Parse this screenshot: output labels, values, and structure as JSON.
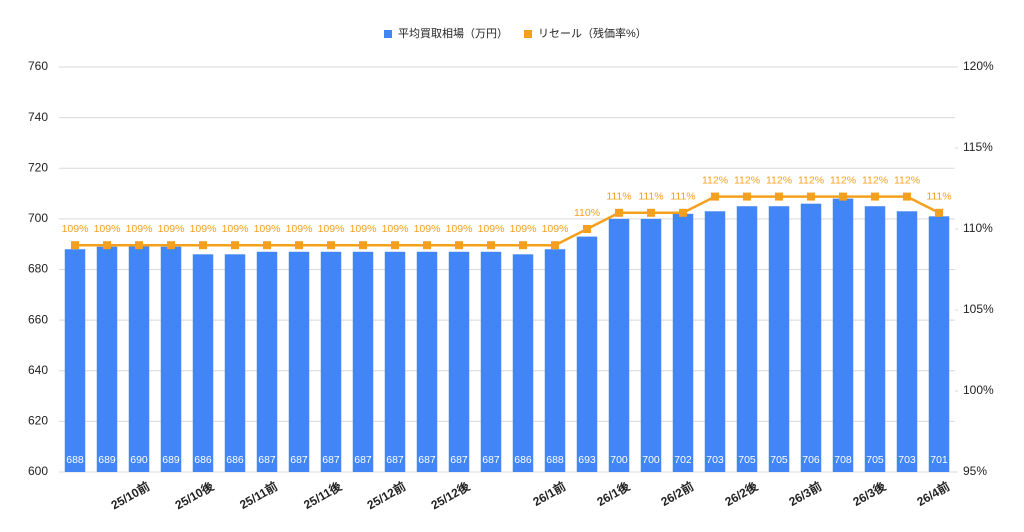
{
  "chart_data": {
    "type": "bar-line",
    "categories": [
      null,
      null,
      "25/10前",
      null,
      "25/10後",
      null,
      "25/11前",
      null,
      "25/11後",
      null,
      "25/12前",
      null,
      "25/12後",
      null,
      null,
      "26/1前",
      null,
      "26/1後",
      null,
      "26/2前",
      null,
      "26/2後",
      null,
      "26/3前",
      null,
      "26/3後",
      null,
      "26/4前"
    ],
    "series": [
      {
        "name": "平均買取相場（万円）",
        "color": "#4285f4",
        "type": "bar",
        "values": [
          688,
          689,
          690,
          689,
          686,
          686,
          687,
          687,
          687,
          687,
          687,
          687,
          687,
          687,
          686,
          688,
          693,
          700,
          700,
          702,
          703,
          705,
          705,
          706,
          708,
          705,
          703,
          701
        ]
      },
      {
        "name": "リセール（残価率%）",
        "color": "#f4a01c",
        "type": "line",
        "axis": "y2",
        "values": [
          109,
          109,
          109,
          109,
          109,
          109,
          109,
          109,
          109,
          109,
          109,
          109,
          109,
          109,
          109,
          109,
          110,
          111,
          111,
          111,
          112,
          112,
          112,
          112,
          112,
          112,
          112,
          111
        ],
        "value_labels": [
          "109%",
          "109%",
          "109%",
          "109%",
          "109%",
          "109%",
          "109%",
          "109%",
          "109%",
          "109%",
          "109%",
          "109%",
          "109%",
          "109%",
          "109%",
          "109%",
          "110%",
          "111%",
          "111%",
          "111%",
          "112%",
          "112%",
          "112%",
          "112%",
          "112%",
          "112%",
          "112%",
          "111%"
        ]
      }
    ],
    "ylim": [
      600,
      760
    ],
    "yticks": [
      600,
      620,
      640,
      660,
      680,
      700,
      720,
      740,
      760
    ],
    "y2lim": [
      95,
      120
    ],
    "y2ticks": [
      {
        "value": 95,
        "label": "95%"
      },
      {
        "value": 100,
        "label": "100%"
      },
      {
        "value": 105,
        "label": "105%"
      },
      {
        "value": 110,
        "label": "110%"
      },
      {
        "value": 115,
        "label": "115%"
      },
      {
        "value": 120,
        "label": "120%"
      }
    ],
    "grid": true,
    "legend": "top"
  }
}
